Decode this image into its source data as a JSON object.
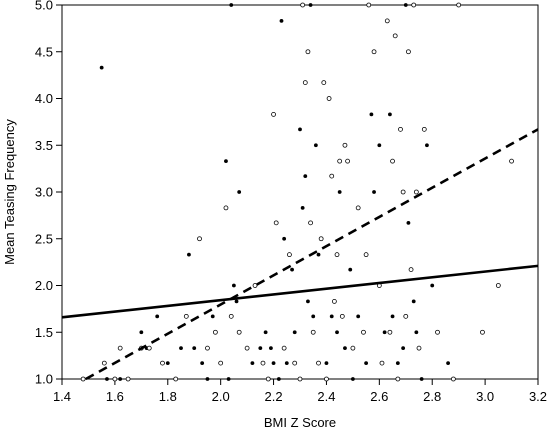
{
  "chart_data": {
    "type": "scatter",
    "title": "",
    "xlabel": "BMI Z Score",
    "ylabel": "Mean Teasing Frequency",
    "xlim": [
      1.4,
      3.2
    ],
    "ylim": [
      1.0,
      5.0
    ],
    "x_ticks": [
      "1.4",
      "1.6",
      "1.8",
      "2.0",
      "2.2",
      "2.4",
      "2.6",
      "2.8",
      "3.0",
      "3.2"
    ],
    "y_ticks": [
      "1.0",
      "1.5",
      "2.0",
      "2.5",
      "3.0",
      "3.5",
      "4.0",
      "4.5",
      "5.0"
    ],
    "grid": false,
    "legend": "none",
    "colors": {
      "axis": "#000000",
      "filled_points": "#000000",
      "open_points": "#000000"
    },
    "series": [
      {
        "marker": "filled-circle",
        "points": [
          [
            1.55,
            4.33
          ],
          [
            1.57,
            1.0
          ],
          [
            1.62,
            1.0
          ],
          [
            1.7,
            1.5
          ],
          [
            1.72,
            1.33
          ],
          [
            1.76,
            1.67
          ],
          [
            1.8,
            1.17
          ],
          [
            1.85,
            1.33
          ],
          [
            1.88,
            2.33
          ],
          [
            1.9,
            1.33
          ],
          [
            1.93,
            1.17
          ],
          [
            1.95,
            1.0
          ],
          [
            1.97,
            1.67
          ],
          [
            2.02,
            3.33
          ],
          [
            2.03,
            1.0
          ],
          [
            2.04,
            5.0
          ],
          [
            2.05,
            2.0
          ],
          [
            2.06,
            1.83
          ],
          [
            2.07,
            3.0
          ],
          [
            2.12,
            1.17
          ],
          [
            2.15,
            1.33
          ],
          [
            2.17,
            1.5
          ],
          [
            2.19,
            1.33
          ],
          [
            2.2,
            1.17
          ],
          [
            2.22,
            1.0
          ],
          [
            2.23,
            4.83
          ],
          [
            2.24,
            2.5
          ],
          [
            2.25,
            1.17
          ],
          [
            2.27,
            2.17
          ],
          [
            2.28,
            1.5
          ],
          [
            2.3,
            3.67
          ],
          [
            2.31,
            2.83
          ],
          [
            2.32,
            3.17
          ],
          [
            2.33,
            1.83
          ],
          [
            2.34,
            5.0
          ],
          [
            2.35,
            1.67
          ],
          [
            2.36,
            3.5
          ],
          [
            2.37,
            2.33
          ],
          [
            2.4,
            1.17
          ],
          [
            2.42,
            1.67
          ],
          [
            2.44,
            1.5
          ],
          [
            2.45,
            3.0
          ],
          [
            2.47,
            1.33
          ],
          [
            2.49,
            2.17
          ],
          [
            2.5,
            1.0
          ],
          [
            2.52,
            1.67
          ],
          [
            2.55,
            1.17
          ],
          [
            2.57,
            3.83
          ],
          [
            2.58,
            3.0
          ],
          [
            2.6,
            3.5
          ],
          [
            2.62,
            1.5
          ],
          [
            2.64,
            3.83
          ],
          [
            2.65,
            1.67
          ],
          [
            2.67,
            1.17
          ],
          [
            2.69,
            1.33
          ],
          [
            2.7,
            5.0
          ],
          [
            2.71,
            2.67
          ],
          [
            2.72,
            2.17
          ],
          [
            2.73,
            1.83
          ],
          [
            2.74,
            1.5
          ],
          [
            2.76,
            1.0
          ],
          [
            2.78,
            3.5
          ],
          [
            2.8,
            2.0
          ],
          [
            2.86,
            1.17
          ]
        ]
      },
      {
        "marker": "open-circle",
        "points": [
          [
            1.48,
            1.0
          ],
          [
            1.56,
            1.17
          ],
          [
            1.6,
            1.0
          ],
          [
            1.62,
            1.33
          ],
          [
            1.65,
            1.0
          ],
          [
            1.7,
            1.33
          ],
          [
            1.73,
            1.33
          ],
          [
            1.78,
            1.17
          ],
          [
            1.83,
            1.0
          ],
          [
            1.87,
            1.67
          ],
          [
            1.92,
            2.5
          ],
          [
            1.95,
            1.33
          ],
          [
            1.98,
            1.5
          ],
          [
            2.0,
            1.17
          ],
          [
            2.02,
            2.83
          ],
          [
            2.04,
            1.67
          ],
          [
            2.07,
            1.5
          ],
          [
            2.1,
            1.33
          ],
          [
            2.13,
            2.0
          ],
          [
            2.16,
            1.17
          ],
          [
            2.18,
            1.0
          ],
          [
            2.2,
            3.83
          ],
          [
            2.21,
            2.67
          ],
          [
            2.24,
            1.33
          ],
          [
            2.26,
            2.33
          ],
          [
            2.28,
            1.17
          ],
          [
            2.3,
            1.0
          ],
          [
            2.31,
            5.0
          ],
          [
            2.32,
            4.17
          ],
          [
            2.33,
            4.5
          ],
          [
            2.34,
            2.67
          ],
          [
            2.35,
            1.5
          ],
          [
            2.37,
            1.17
          ],
          [
            2.38,
            2.5
          ],
          [
            2.39,
            4.17
          ],
          [
            2.4,
            1.0
          ],
          [
            2.41,
            4.0
          ],
          [
            2.42,
            3.17
          ],
          [
            2.43,
            1.83
          ],
          [
            2.44,
            2.33
          ],
          [
            2.45,
            3.33
          ],
          [
            2.46,
            1.67
          ],
          [
            2.47,
            3.5
          ],
          [
            2.48,
            3.33
          ],
          [
            2.5,
            1.33
          ],
          [
            2.52,
            2.83
          ],
          [
            2.54,
            1.5
          ],
          [
            2.55,
            2.33
          ],
          [
            2.56,
            5.0
          ],
          [
            2.58,
            4.5
          ],
          [
            2.6,
            2.0
          ],
          [
            2.61,
            1.17
          ],
          [
            2.63,
            4.83
          ],
          [
            2.64,
            1.5
          ],
          [
            2.65,
            3.33
          ],
          [
            2.66,
            4.67
          ],
          [
            2.67,
            1.0
          ],
          [
            2.68,
            3.67
          ],
          [
            2.69,
            3.0
          ],
          [
            2.7,
            1.67
          ],
          [
            2.71,
            4.5
          ],
          [
            2.72,
            2.17
          ],
          [
            2.73,
            5.0
          ],
          [
            2.74,
            3.0
          ],
          [
            2.75,
            1.33
          ],
          [
            2.77,
            3.67
          ],
          [
            2.82,
            1.5
          ],
          [
            2.88,
            1.0
          ],
          [
            2.9,
            5.0
          ],
          [
            2.99,
            1.5
          ],
          [
            3.05,
            2.0
          ],
          [
            3.1,
            3.33
          ]
        ]
      }
    ],
    "lines": [
      {
        "style": "solid",
        "x": [
          1.4,
          3.2
        ],
        "y": [
          1.66,
          2.21
        ]
      },
      {
        "style": "dashed",
        "x": [
          1.49,
          3.2
        ],
        "y": [
          1.0,
          3.67
        ]
      }
    ]
  }
}
